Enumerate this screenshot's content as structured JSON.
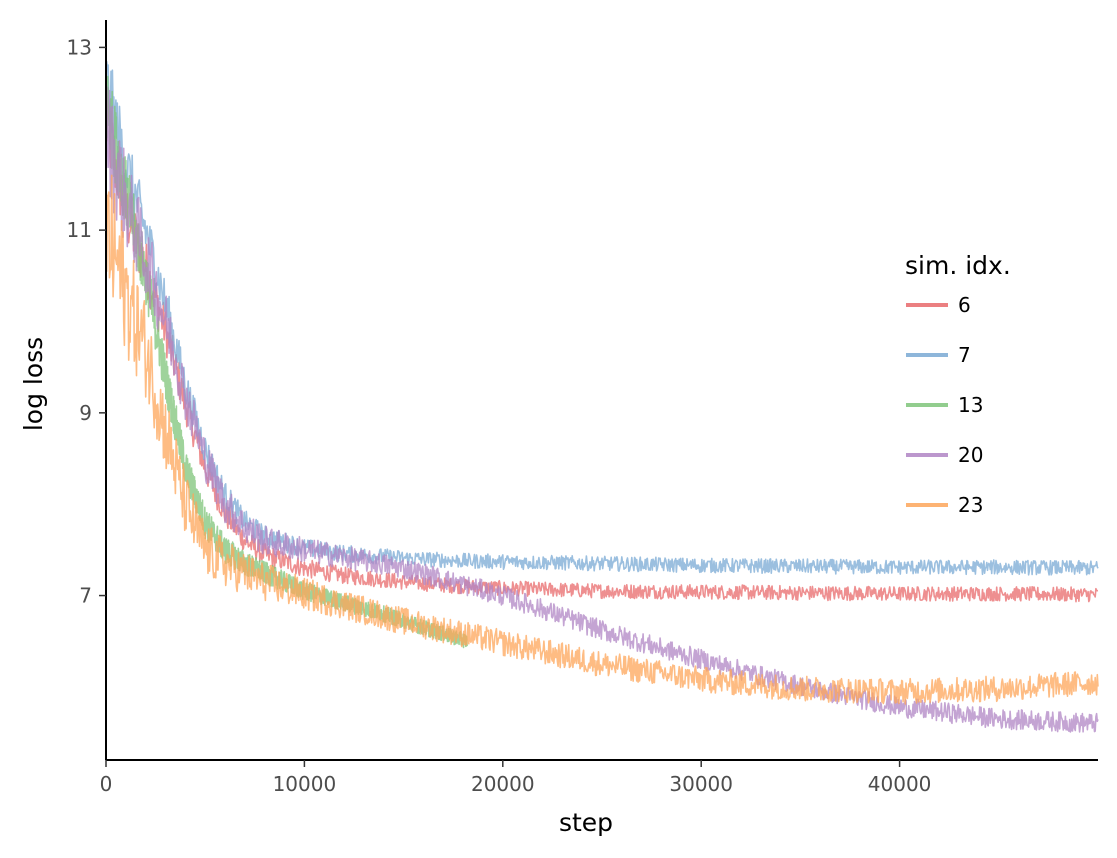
{
  "chart_data": {
    "type": "line",
    "xlabel": "step",
    "ylabel": "log loss",
    "xlim": [
      0,
      50000
    ],
    "ylim": [
      5.2,
      13.3
    ],
    "x_ticks": [
      0,
      10000,
      20000,
      30000,
      40000
    ],
    "y_ticks": [
      7,
      9,
      11,
      13
    ],
    "legend": {
      "title": "sim. idx.",
      "position": "right"
    },
    "series": [
      {
        "name": "6",
        "color": "#e8696b",
        "noise": 0.08,
        "x": [
          0,
          1000,
          2000,
          3000,
          4000,
          5000,
          6000,
          7000,
          8000,
          10000,
          12000,
          15000,
          18000,
          20000,
          25000,
          30000,
          35000,
          40000,
          45000,
          50000
        ],
        "y": [
          12.2,
          11.2,
          10.6,
          9.9,
          9.1,
          8.4,
          7.9,
          7.6,
          7.45,
          7.3,
          7.22,
          7.15,
          7.1,
          7.08,
          7.05,
          7.04,
          7.03,
          7.02,
          7.02,
          7.01
        ]
      },
      {
        "name": "7",
        "color": "#7aa9d4",
        "noise": 0.08,
        "x": [
          0,
          1000,
          2000,
          3000,
          4000,
          5000,
          6000,
          7000,
          8000,
          10000,
          12000,
          15000,
          18000,
          20000,
          25000,
          30000,
          35000,
          40000,
          45000,
          50000
        ],
        "y": [
          12.6,
          11.7,
          11.0,
          10.2,
          9.3,
          8.6,
          8.1,
          7.8,
          7.65,
          7.52,
          7.46,
          7.41,
          7.38,
          7.37,
          7.35,
          7.33,
          7.32,
          7.31,
          7.31,
          7.3
        ]
      },
      {
        "name": "13",
        "color": "#7fc47a",
        "noise": 0.08,
        "x": [
          0,
          1000,
          2000,
          3000,
          4000,
          5000,
          6000,
          7000,
          8000,
          10000,
          12000,
          14000,
          16000,
          18200
        ],
        "y": [
          12.4,
          11.4,
          10.5,
          9.4,
          8.4,
          7.8,
          7.5,
          7.35,
          7.25,
          7.05,
          6.92,
          6.8,
          6.65,
          6.5
        ]
      },
      {
        "name": "20",
        "color": "#b085c4",
        "noise": 0.11,
        "x": [
          0,
          1000,
          2000,
          3000,
          4000,
          5000,
          6000,
          7000,
          8000,
          10000,
          12000,
          15000,
          18000,
          20000,
          22000,
          25000,
          28000,
          30000,
          33000,
          36000,
          40000,
          45000,
          50000
        ],
        "y": [
          12.1,
          11.3,
          10.7,
          10.0,
          9.2,
          8.5,
          8.0,
          7.75,
          7.6,
          7.5,
          7.42,
          7.3,
          7.12,
          7.0,
          6.85,
          6.62,
          6.42,
          6.3,
          6.12,
          5.96,
          5.78,
          5.65,
          5.6
        ]
      },
      {
        "name": "23",
        "color": "#fda65a",
        "noise": 0.14,
        "x": [
          0,
          500,
          1000,
          2000,
          3000,
          4000,
          5000,
          6000,
          7000,
          8000,
          10000,
          12000,
          15000,
          18000,
          20000,
          25000,
          30000,
          35000,
          40000,
          45000,
          50000
        ],
        "y": [
          11.0,
          10.7,
          10.3,
          9.7,
          8.8,
          8.0,
          7.5,
          7.35,
          7.25,
          7.15,
          7.02,
          6.9,
          6.72,
          6.58,
          6.48,
          6.25,
          6.08,
          5.98,
          5.95,
          5.98,
          6.05
        ]
      }
    ]
  }
}
